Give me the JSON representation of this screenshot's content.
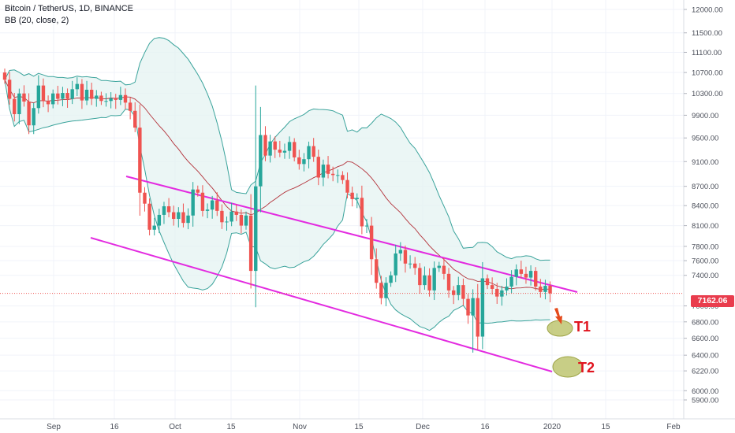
{
  "header": {
    "symbol_line": "Bitcoin / TetherUS, 1D, BINANCE",
    "indicator_line": "BB (20, close, 2)"
  },
  "last_price": "7162.06",
  "targets": [
    "T1",
    "T2"
  ],
  "colors": {
    "up": "#26a69a",
    "down": "#ef5350",
    "bb_band": "#3aa39b",
    "bb_fill": "#e3f2f1",
    "bb_basis": "#b3323a",
    "channel": "#e32be0",
    "target_fill": "#b5bd5e",
    "arrow": "#e54a1c"
  },
  "chart_data": {
    "type": "candlestick",
    "symbol": "Bitcoin / TetherUS",
    "timeframe": "1D",
    "exchange": "BINANCE",
    "indicator": "BB (20, close, 2)",
    "y_axis": {
      "ticks": [
        "12000.00",
        "11500.00",
        "11100.00",
        "10700.00",
        "10300.00",
        "9900.00",
        "9500.00",
        "9100.00",
        "8700.00",
        "8400.00",
        "8100.00",
        "7800.00",
        "7600.00",
        "7400.00",
        "7000.00",
        "6800.00",
        "6600.00",
        "6400.00",
        "6220.00",
        "6000.00",
        "5900.00"
      ],
      "scale": "log"
    },
    "x_axis": {
      "ticks": [
        "Sep",
        "16",
        "Oct",
        "15",
        "Nov",
        "15",
        "Dec",
        "16",
        "2020",
        "15",
        "Feb"
      ]
    },
    "last_close": 7162.06,
    "closes": [
      10560,
      10200,
      9920,
      10300,
      10150,
      9720,
      10030,
      10450,
      10160,
      10100,
      10300,
      10200,
      10310,
      10200,
      10380,
      10480,
      10170,
      10370,
      10200,
      10260,
      10160,
      10160,
      10210,
      10180,
      10270,
      10130,
      9980,
      9680,
      8600,
      8430,
      8040,
      8100,
      8260,
      8390,
      8300,
      8200,
      8300,
      8140,
      8250,
      8650,
      8600,
      8320,
      8340,
      8480,
      8320,
      8150,
      8160,
      8310,
      8260,
      8100,
      8250,
      7460,
      8700,
      9550,
      9200,
      9440,
      9300,
      9250,
      9280,
      9430,
      9170,
      9060,
      9140,
      9360,
      9180,
      8840,
      9050,
      8900,
      8880,
      8880,
      8800,
      8600,
      8500,
      8520,
      8090,
      8100,
      7620,
      7300,
      7100,
      7300,
      7400,
      7700,
      7750,
      7560,
      7560,
      7500,
      7270,
      7400,
      7200,
      7500,
      7530,
      7420,
      7200,
      7140,
      7270,
      7090,
      6880,
      7100,
      6620,
      7360,
      7270,
      7220,
      7120,
      7200,
      7250,
      7380,
      7480,
      7420,
      7370,
      7460,
      7250,
      7180,
      7260,
      7162
    ]
  }
}
